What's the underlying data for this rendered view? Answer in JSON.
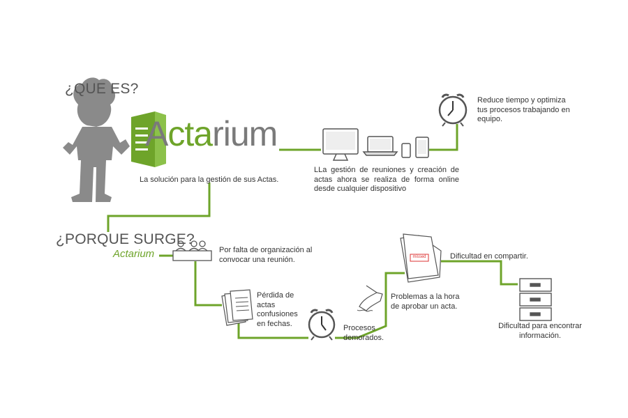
{
  "headings": {
    "que_es": "¿QUE ES?",
    "porque_surge": "¿PORQUE SURGE?"
  },
  "brand": {
    "prefix": "A",
    "highlight": "cta",
    "suffix": "rium",
    "sub": "Actarium"
  },
  "texts": {
    "tagline": "La solución para la gestión de sus Actas.",
    "devices": "LLa gestión de reuniones y creación de actas ahora se realiza de forma online desde cualquier dispositivo",
    "reduce": "Reduce tiempo y optimiza tus procesos trabajando en equipo.",
    "falta": "Por falta de organización al convocar una reunión.",
    "perdida": "Pérdida de actas confusiones en fechas.",
    "procesos": "Procesos demorados.",
    "problemas": "Problemas a la hora de aprobar un acta.",
    "compartir": "Dificultad en compartir.",
    "encontrar": "Dificultad para encontrar información.",
    "stamp": "missed"
  },
  "colors": {
    "accent": "#6ea42a",
    "gray": "#9a9a9a",
    "text": "#333333"
  }
}
